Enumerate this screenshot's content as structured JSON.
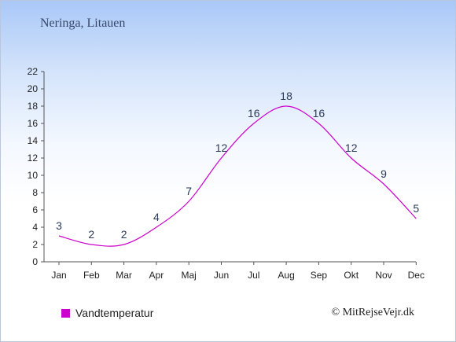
{
  "header": {
    "location": "Neringa, Litauen"
  },
  "legend": {
    "label": "Vandtemperatur",
    "color": "#cc00cc"
  },
  "footer": {
    "copyright": "© MitRejseVejr.dk"
  },
  "chart_data": {
    "type": "line",
    "title": "",
    "xlabel": "",
    "ylabel": "",
    "categories": [
      "Jan",
      "Feb",
      "Mar",
      "Apr",
      "Maj",
      "Jun",
      "Jul",
      "Aug",
      "Sep",
      "Okt",
      "Nov",
      "Dec"
    ],
    "series": [
      {
        "name": "Vandtemperatur",
        "values": [
          3,
          2,
          2,
          4,
          7,
          12,
          16,
          18,
          16,
          12,
          9,
          5
        ],
        "color": "#cc00cc"
      }
    ],
    "ylim": [
      0,
      22
    ],
    "yticks": [
      0,
      2,
      4,
      6,
      8,
      10,
      12,
      14,
      16,
      18,
      20,
      22
    ],
    "grid": false,
    "legend_position": "bottom-left"
  }
}
